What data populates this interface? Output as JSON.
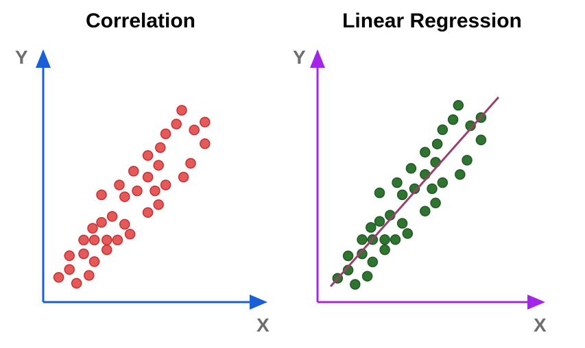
{
  "chart_data": [
    {
      "type": "scatter",
      "title": "Correlation",
      "xlabel": "X",
      "ylabel": "Y",
      "grid": false,
      "legend": "none",
      "axis_color": "#1a5fd8",
      "point_color": "#e45a5a",
      "point_stroke": "#c82e2e",
      "xlim": [
        0,
        10
      ],
      "ylim": [
        0,
        10
      ],
      "points": [
        [
          0.6,
          0.7
        ],
        [
          1.2,
          1.8
        ],
        [
          1.2,
          1.1
        ],
        [
          1.6,
          0.4
        ],
        [
          2.0,
          1.9
        ],
        [
          2.0,
          2.6
        ],
        [
          2.3,
          0.8
        ],
        [
          2.5,
          3.2
        ],
        [
          2.6,
          1.5
        ],
        [
          2.6,
          2.6
        ],
        [
          3.0,
          3.5
        ],
        [
          3.0,
          4.9
        ],
        [
          3.3,
          2.1
        ],
        [
          3.3,
          2.6
        ],
        [
          3.6,
          3.8
        ],
        [
          3.9,
          2.6
        ],
        [
          4.0,
          5.4
        ],
        [
          4.3,
          4.8
        ],
        [
          4.3,
          3.4
        ],
        [
          4.6,
          2.9
        ],
        [
          4.8,
          6.1
        ],
        [
          5.0,
          5.1
        ],
        [
          5.6,
          4.0
        ],
        [
          5.6,
          6.9
        ],
        [
          5.6,
          5.8
        ],
        [
          6.0,
          5.1
        ],
        [
          6.2,
          6.4
        ],
        [
          6.2,
          4.4
        ],
        [
          6.3,
          7.3
        ],
        [
          6.6,
          5.4
        ],
        [
          6.6,
          8.0
        ],
        [
          7.2,
          8.5
        ],
        [
          7.6,
          5.8
        ],
        [
          7.5,
          9.2
        ],
        [
          8.0,
          6.5
        ],
        [
          8.2,
          8.2
        ],
        [
          8.8,
          7.5
        ],
        [
          8.8,
          8.6
        ]
      ]
    },
    {
      "type": "scatter",
      "title": "Linear Regression",
      "xlabel": "X",
      "ylabel": "Y",
      "grid": false,
      "legend": "none",
      "axis_color": "#a424ea",
      "point_color": "#2f7430",
      "point_stroke": "#1f5a22",
      "line_color": "#9a3f6c",
      "xlim": [
        0,
        10
      ],
      "ylim": [
        0,
        10
      ],
      "regression_line": [
        [
          0.2,
          0.3
        ],
        [
          9.8,
          9.6
        ]
      ],
      "points": [
        [
          0.6,
          0.7
        ],
        [
          1.2,
          1.8
        ],
        [
          1.2,
          1.1
        ],
        [
          1.6,
          0.4
        ],
        [
          2.0,
          1.9
        ],
        [
          2.0,
          2.6
        ],
        [
          2.3,
          0.8
        ],
        [
          2.5,
          3.2
        ],
        [
          2.6,
          1.5
        ],
        [
          2.6,
          2.6
        ],
        [
          3.0,
          3.5
        ],
        [
          3.0,
          4.9
        ],
        [
          3.3,
          2.1
        ],
        [
          3.3,
          2.6
        ],
        [
          3.6,
          3.8
        ],
        [
          3.9,
          2.6
        ],
        [
          4.0,
          5.4
        ],
        [
          4.3,
          4.8
        ],
        [
          4.3,
          3.4
        ],
        [
          4.6,
          2.9
        ],
        [
          4.8,
          6.1
        ],
        [
          5.0,
          5.1
        ],
        [
          5.6,
          4.0
        ],
        [
          5.6,
          6.9
        ],
        [
          5.6,
          5.8
        ],
        [
          6.0,
          5.1
        ],
        [
          6.2,
          6.4
        ],
        [
          6.2,
          4.4
        ],
        [
          6.3,
          7.3
        ],
        [
          6.6,
          5.4
        ],
        [
          6.6,
          8.0
        ],
        [
          7.2,
          8.5
        ],
        [
          7.6,
          5.8
        ],
        [
          7.5,
          9.2
        ],
        [
          8.0,
          6.5
        ],
        [
          8.2,
          8.2
        ],
        [
          8.8,
          7.5
        ],
        [
          8.8,
          8.6
        ]
      ]
    }
  ]
}
